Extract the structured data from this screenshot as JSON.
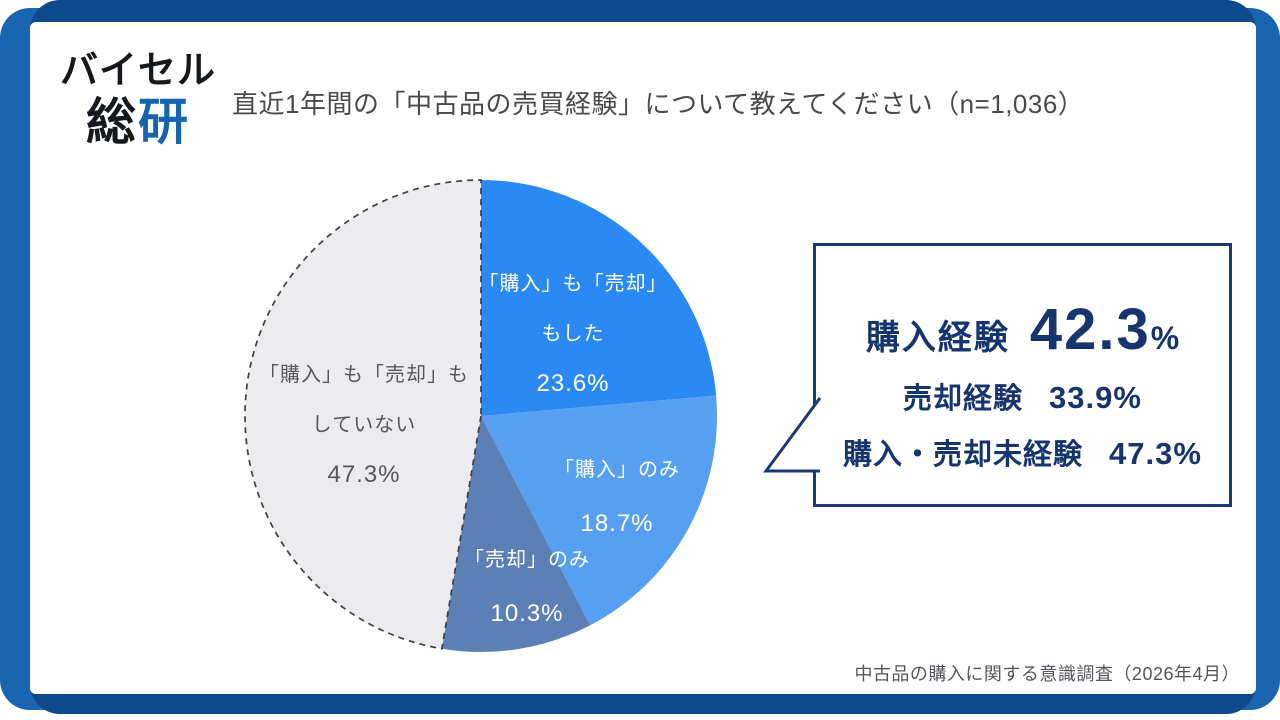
{
  "logo": {
    "line1": "バイセル",
    "line2_part1": "総",
    "line2_part2": "研"
  },
  "chart_data": {
    "type": "pie",
    "title": "直近1年間の「中古品の売買経験」について教えてください（n=1,036）",
    "unit": "%",
    "start_angle_deg": 0,
    "direction": "clockwise",
    "legend_position": "labels-on-slices",
    "slices": [
      {
        "label": "「購入」も「売却」もした",
        "label_lines": [
          "「購入」も「売却」",
          "もした"
        ],
        "value": 23.6,
        "display_value": "23.6%",
        "color": "#2B89F3",
        "text_color": "#FFFFFF"
      },
      {
        "label": "「購入」のみ",
        "label_lines": [
          "「購入」のみ"
        ],
        "value": 18.7,
        "display_value": "18.7%",
        "color": "#57A0F1",
        "text_color": "#FFFFFF"
      },
      {
        "label": "「売却」のみ",
        "label_lines": [
          "「売却」のみ"
        ],
        "value": 10.3,
        "display_value": "10.3%",
        "color": "#5C7FB5",
        "text_color": "#FFFFFF"
      },
      {
        "label": "「購入」も「売却」もしていない",
        "label_lines": [
          "「購入」も「売却」も",
          "していない"
        ],
        "value": 47.3,
        "display_value": "47.3%",
        "color": "#ECECEF",
        "text_color": "#57575C",
        "dashed_outline": true
      }
    ]
  },
  "callout": {
    "rows": [
      {
        "label": "購入経験",
        "value": "42.3",
        "unit": "%"
      },
      {
        "label": "売却経験",
        "value": "33.9%"
      },
      {
        "label": "購入・売却未経験",
        "value": "47.3%"
      }
    ]
  },
  "footer": {
    "source": "中古品の購入に関する意識調査（2026年4月）"
  },
  "colors": {
    "frame_accent_blue": "#1A65B0",
    "frame_navy": "#0D498B",
    "callout_navy": "#1B3A74",
    "callout_text": "#16356F",
    "title_text": "#4A4A4A",
    "dashed_outline": "#3F3F45"
  }
}
